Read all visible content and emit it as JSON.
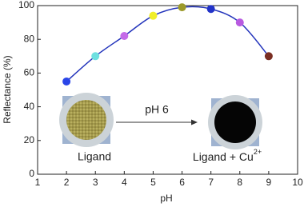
{
  "chart_data": {
    "type": "scatter",
    "x": [
      2,
      3,
      4,
      5,
      6,
      7,
      8,
      9
    ],
    "values": [
      55,
      70,
      82,
      94,
      99,
      98,
      90,
      70
    ],
    "colors": [
      "#2a45e8",
      "#6ee0e0",
      "#c46ae8",
      "#f0ee2a",
      "#9c9a2a",
      "#2233c8",
      "#b85ae0",
      "#7a2e22"
    ],
    "curve_color": "#2233bb",
    "x_label": "pH",
    "y_label": "Reflectance (%)",
    "xlim": [
      1,
      10
    ],
    "xticks": [
      1,
      2,
      3,
      4,
      5,
      6,
      7,
      8,
      9,
      10
    ],
    "ylim": [
      0,
      100
    ],
    "yticks": [
      0,
      20,
      40,
      60,
      80,
      100
    ],
    "annotations": {
      "arrow_label": "pH 6",
      "left_label": "Ligand",
      "right_label": "Ligand + Cu",
      "right_label_sup": "2+"
    }
  }
}
